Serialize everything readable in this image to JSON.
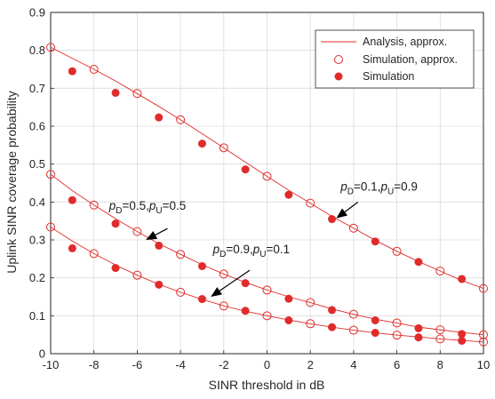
{
  "chart_data": {
    "type": "line",
    "xlabel": "SINR threshold in dB",
    "ylabel": "Uplink SINR coverage probability",
    "xlim": [
      -10,
      10
    ],
    "ylim": [
      0,
      0.9
    ],
    "xticks": [
      -10,
      -8,
      -6,
      -4,
      -2,
      0,
      2,
      4,
      6,
      8,
      10
    ],
    "yticks": [
      0,
      0.1,
      0.2,
      0.3,
      0.4,
      0.5,
      0.6,
      0.7,
      0.8,
      0.9
    ],
    "grid": true,
    "legend_position": "top-right",
    "colors": {
      "series": "#e02b2b",
      "grid": "#dcdcdc",
      "axis": "#262626"
    },
    "legend": [
      {
        "label": "Analysis, approx.",
        "style": "line"
      },
      {
        "label": "Simulation, approx.",
        "style": "open-circle"
      },
      {
        "label": "Simulation",
        "style": "filled-circle"
      }
    ],
    "groups": [
      {
        "label_parts": [
          "p",
          "D",
          "=0.1,",
          "p",
          "U",
          "=0.9"
        ],
        "analysis": {
          "x": [
            -10,
            -9,
            -8,
            -7,
            -6,
            -5,
            -4,
            -3,
            -2,
            -1,
            0,
            1,
            2,
            3,
            4,
            5,
            6,
            7,
            8,
            9,
            10
          ],
          "y": [
            0.808,
            0.779,
            0.75,
            0.719,
            0.686,
            0.652,
            0.617,
            0.58,
            0.543,
            0.505,
            0.468,
            0.431,
            0.397,
            0.362,
            0.331,
            0.299,
            0.27,
            0.243,
            0.218,
            0.193,
            0.172
          ]
        },
        "simulation_approx": {
          "x": [
            -10,
            -8,
            -6,
            -4,
            -2,
            0,
            2,
            4,
            6,
            8,
            10
          ],
          "y": [
            0.808,
            0.75,
            0.686,
            0.617,
            0.543,
            0.468,
            0.397,
            0.331,
            0.27,
            0.218,
            0.172
          ]
        },
        "simulation": {
          "x": [
            -9,
            -7,
            -5,
            -3,
            -1,
            1,
            3,
            5,
            7,
            9
          ],
          "y": [
            0.745,
            0.688,
            0.623,
            0.554,
            0.486,
            0.419,
            0.355,
            0.296,
            0.242,
            0.197
          ]
        }
      },
      {
        "label_parts": [
          "p",
          "D",
          "=0.5,",
          "p",
          "U",
          "=0.5"
        ],
        "analysis": {
          "x": [
            -10,
            -9,
            -8,
            -7,
            -6,
            -5,
            -4,
            -3,
            -2,
            -1,
            0,
            1,
            2,
            3,
            4,
            5,
            6,
            7,
            8,
            9,
            10
          ],
          "y": [
            0.473,
            0.43,
            0.392,
            0.356,
            0.322,
            0.29,
            0.262,
            0.235,
            0.21,
            0.188,
            0.168,
            0.15,
            0.135,
            0.118,
            0.104,
            0.091,
            0.081,
            0.07,
            0.063,
            0.056,
            0.05
          ]
        },
        "simulation_approx": {
          "x": [
            -10,
            -8,
            -6,
            -4,
            -2,
            0,
            2,
            4,
            6,
            8,
            10
          ],
          "y": [
            0.473,
            0.392,
            0.322,
            0.262,
            0.21,
            0.168,
            0.135,
            0.104,
            0.081,
            0.063,
            0.05
          ]
        },
        "simulation": {
          "x": [
            -9,
            -7,
            -5,
            -3,
            -1,
            1,
            3,
            5,
            7,
            9
          ],
          "y": [
            0.405,
            0.343,
            0.285,
            0.231,
            0.186,
            0.145,
            0.115,
            0.088,
            0.067,
            0.052
          ]
        }
      },
      {
        "label_parts": [
          "p",
          "D",
          "=0.9,",
          "p",
          "U",
          "=0.1"
        ],
        "analysis": {
          "x": [
            -10,
            -9,
            -8,
            -7,
            -6,
            -5,
            -4,
            -3,
            -2,
            -1,
            0,
            1,
            2,
            3,
            4,
            5,
            6,
            7,
            8,
            9,
            10
          ],
          "y": [
            0.334,
            0.297,
            0.264,
            0.234,
            0.207,
            0.183,
            0.162,
            0.143,
            0.126,
            0.112,
            0.1,
            0.089,
            0.079,
            0.07,
            0.062,
            0.055,
            0.049,
            0.044,
            0.039,
            0.035,
            0.031
          ]
        },
        "simulation_approx": {
          "x": [
            -10,
            -8,
            -6,
            -4,
            -2,
            0,
            2,
            4,
            6,
            8,
            10
          ],
          "y": [
            0.334,
            0.264,
            0.207,
            0.162,
            0.126,
            0.1,
            0.079,
            0.062,
            0.049,
            0.039,
            0.031
          ]
        },
        "simulation": {
          "x": [
            -9,
            -7,
            -5,
            -3,
            -1,
            1,
            3,
            5,
            7,
            9
          ],
          "y": [
            0.278,
            0.226,
            0.182,
            0.144,
            0.113,
            0.088,
            0.07,
            0.055,
            0.043,
            0.034
          ]
        }
      }
    ],
    "annotations": [
      {
        "group": 0,
        "text_at": [
          3.4,
          0.43
        ],
        "arrow_from": [
          4.2,
          0.4
        ],
        "arrow_to": [
          3.2,
          0.357
        ]
      },
      {
        "group": 1,
        "text_at": [
          -7.3,
          0.38
        ],
        "arrow_from": [
          -4.6,
          0.33
        ],
        "arrow_to": [
          -5.6,
          0.3
        ]
      },
      {
        "group": 2,
        "text_at": [
          -2.5,
          0.265
        ],
        "arrow_from": [
          -0.8,
          0.22
        ],
        "arrow_to": [
          -2.6,
          0.15
        ]
      }
    ]
  }
}
